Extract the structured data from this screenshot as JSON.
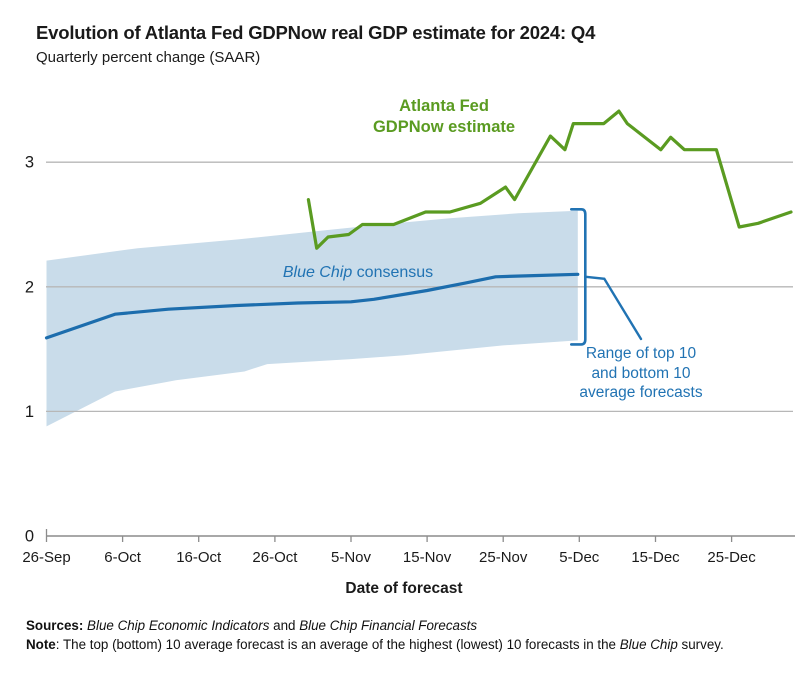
{
  "header": {
    "title": "Evolution of Atlanta Fed GDPNow real GDP estimate for 2024: Q4",
    "subtitle": "Quarterly percent change (SAAR)"
  },
  "colors": {
    "gdpnow_green": "#5a9b21",
    "bluechip_blue": "#1c6dad",
    "band_fill": "#c9dcea",
    "annotation_blue": "#2173b3",
    "grid": "#b7b7b7",
    "axis": "#8c8c8c",
    "tick_text": "#1a1a1a"
  },
  "labels": {
    "gdpnow_line1": "Atlanta Fed",
    "gdpnow_line2": "GDPNow estimate",
    "bluechip_italic": "Blue Chip",
    "bluechip_rest": "consensus",
    "range_line1": "Range of top 10",
    "range_line2": "and bottom 10",
    "range_line3": "average forecasts"
  },
  "footer": {
    "sources_label": "Sources:",
    "sources_italic1": "Blue Chip Economic Indicators",
    "sources_connector": " and ",
    "sources_italic2": "Blue Chip Financial Forecasts",
    "note_label": "Note",
    "note_text1": ": The top (bottom) 10 average forecast is an average of the highest (lowest) 10 forecasts in the ",
    "note_italic": "Blue Chip",
    "note_text2": " survey."
  },
  "chart_data": {
    "type": "line",
    "title": "Evolution of Atlanta Fed GDPNow real GDP estimate for 2024: Q4",
    "subtitle": "Quarterly percent change (SAAR)",
    "xlabel": "Date of forecast",
    "ylabel": "Quarterly percent change (SAAR)",
    "x_unit": "days since 26-Sep-2024 (ticks every 10 days)",
    "x_axis": {
      "label": "Date of forecast",
      "tick_labels": [
        "26-Sep",
        "6-Oct",
        "16-Oct",
        "26-Oct",
        "5-Nov",
        "15-Nov",
        "25-Nov",
        "5-Dec",
        "15-Dec",
        "25-Dec"
      ],
      "tick_days": [
        0,
        10,
        20,
        30,
        40,
        50,
        60,
        70,
        80,
        90
      ],
      "range_days": [
        0,
        98.5
      ]
    },
    "y_axis": {
      "ticks": [
        0,
        1,
        2,
        3
      ],
      "tick_labels": [
        "0",
        "1",
        "2",
        "3"
      ],
      "gridlines": [
        1,
        2,
        3
      ],
      "ylim": [
        0,
        3.6
      ]
    },
    "series": [
      {
        "id": "gdpnow",
        "name": "Atlanta Fed GDPNow estimate",
        "type": "line",
        "color": "#5a9b21",
        "points": [
          [
            34.4,
            2.7
          ],
          [
            35.5,
            2.31
          ],
          [
            37.0,
            2.4
          ],
          [
            39.7,
            2.42
          ],
          [
            41.5,
            2.5
          ],
          [
            45.6,
            2.5
          ],
          [
            49.8,
            2.6
          ],
          [
            53.0,
            2.6
          ],
          [
            57.0,
            2.67
          ],
          [
            60.3,
            2.8
          ],
          [
            61.5,
            2.7
          ],
          [
            66.2,
            3.21
          ],
          [
            68.1,
            3.1
          ],
          [
            69.2,
            3.31
          ],
          [
            73.2,
            3.31
          ],
          [
            75.2,
            3.41
          ],
          [
            76.3,
            3.31
          ],
          [
            80.7,
            3.1
          ],
          [
            82.0,
            3.2
          ],
          [
            83.8,
            3.1
          ],
          [
            88.0,
            3.1
          ],
          [
            91.0,
            2.48
          ],
          [
            93.5,
            2.51
          ],
          [
            97.8,
            2.6
          ]
        ]
      },
      {
        "id": "bluechip",
        "name": "Blue Chip consensus",
        "type": "line",
        "color": "#1c6dad",
        "points": [
          [
            0,
            1.59
          ],
          [
            9,
            1.78
          ],
          [
            16,
            1.82
          ],
          [
            25,
            1.85
          ],
          [
            33,
            1.87
          ],
          [
            40,
            1.88
          ],
          [
            43,
            1.9
          ],
          [
            50,
            1.97
          ],
          [
            55,
            2.03
          ],
          [
            59,
            2.08
          ],
          [
            64,
            2.09
          ],
          [
            69.8,
            2.1
          ]
        ]
      },
      {
        "id": "range",
        "name": "Range of top 10 and bottom 10 average forecasts",
        "type": "band",
        "fill": "#c9dcea",
        "upper": [
          [
            0,
            2.21
          ],
          [
            12,
            2.31
          ],
          [
            25,
            2.38
          ],
          [
            36,
            2.45
          ],
          [
            44,
            2.5
          ],
          [
            53,
            2.55
          ],
          [
            62,
            2.59
          ],
          [
            69.8,
            2.61
          ]
        ],
        "lower": [
          [
            0,
            0.88
          ],
          [
            9,
            1.16
          ],
          [
            17,
            1.25
          ],
          [
            26,
            1.32
          ],
          [
            29,
            1.38
          ],
          [
            40,
            1.42
          ],
          [
            47,
            1.45
          ],
          [
            60,
            1.53
          ],
          [
            69.8,
            1.57
          ]
        ]
      }
    ],
    "annotations": [
      {
        "text": "Atlanta Fed GDPNow estimate",
        "color": "#5a9b21",
        "anchor": "above green line near 15-Nov"
      },
      {
        "text": "Blue Chip consensus",
        "color": "#2173b3",
        "anchor": "above blue line near 26-Oct"
      },
      {
        "text": "Range of top 10 and bottom 10 average forecasts",
        "color": "#2173b3",
        "anchor": "bracket at right end of shaded band, 5-Dec"
      }
    ],
    "legend_position": "inline-labels",
    "grid": "horizontal-only"
  }
}
